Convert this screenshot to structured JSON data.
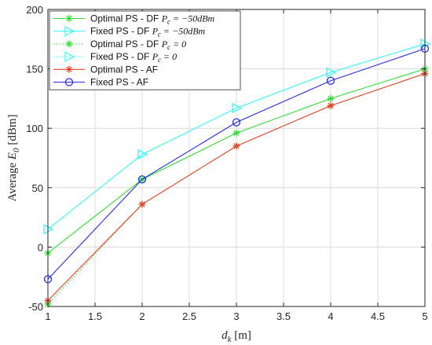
{
  "chart_data": {
    "type": "line",
    "title": "",
    "xlabel": "d_k [m]",
    "ylabel": "Average E_0 [dBm]",
    "xlim": [
      1,
      5
    ],
    "ylim": [
      -50,
      200
    ],
    "xticks": [
      1,
      1.5,
      2,
      2.5,
      3,
      3.5,
      4,
      4.5,
      5
    ],
    "xtick_labels": [
      "1",
      "1.5",
      "2",
      "2.5",
      "3",
      "3.5",
      "4",
      "4.5",
      "5"
    ],
    "yticks": [
      -50,
      0,
      50,
      100,
      150,
      200
    ],
    "ytick_labels": [
      "-50",
      "0",
      "50",
      "100",
      "150",
      "200"
    ],
    "grid": true,
    "legend_position": "top-left",
    "x": [
      1,
      2,
      3,
      4,
      5
    ],
    "series": [
      {
        "name": "Optimal PS - DF P_c = −50dBm",
        "legend_main": "Optimal PS - DF ",
        "legend_math": "P_c = −50dBm",
        "values": [
          -5,
          57,
          96,
          125,
          150
        ],
        "color": "#33dd33",
        "dash": "solid",
        "marker": "asterisk"
      },
      {
        "name": "Fixed PS - DF P_c = −50dBm",
        "legend_main": "Fixed PS - DF ",
        "legend_math": "P_c = −50dBm",
        "values": [
          15,
          78,
          117,
          147,
          171
        ],
        "color": "#3ff5f5",
        "dash": "solid",
        "marker": "triangle-right"
      },
      {
        "name": "Optimal PS - DF P_c = 0",
        "legend_main": "Optimal PS - DF ",
        "legend_math": "P_c = 0",
        "values": [
          -48,
          36,
          85,
          119,
          146
        ],
        "color": "#33dd33",
        "dash": "dotted",
        "marker": "asterisk"
      },
      {
        "name": "Fixed PS - DF P_c = 0",
        "legend_main": "Fixed PS - DF ",
        "legend_math": "P_c = 0",
        "values": [
          15,
          78,
          117,
          147,
          171
        ],
        "color": "#3ff5f5",
        "dash": "dotted",
        "marker": "triangle-right"
      },
      {
        "name": "Optimal PS - AF",
        "legend_main": "Optimal PS - AF",
        "legend_math": "",
        "values": [
          -45,
          36,
          85,
          119,
          146
        ],
        "color": "#e8402a",
        "dash": "solid",
        "marker": "asterisk"
      },
      {
        "name": "Fixed PS - AF",
        "legend_main": "Fixed PS - AF",
        "legend_math": "",
        "values": [
          -27,
          57,
          105,
          140,
          167
        ],
        "color": "#2a2ae0",
        "dash": "solid",
        "marker": "circle"
      }
    ]
  }
}
